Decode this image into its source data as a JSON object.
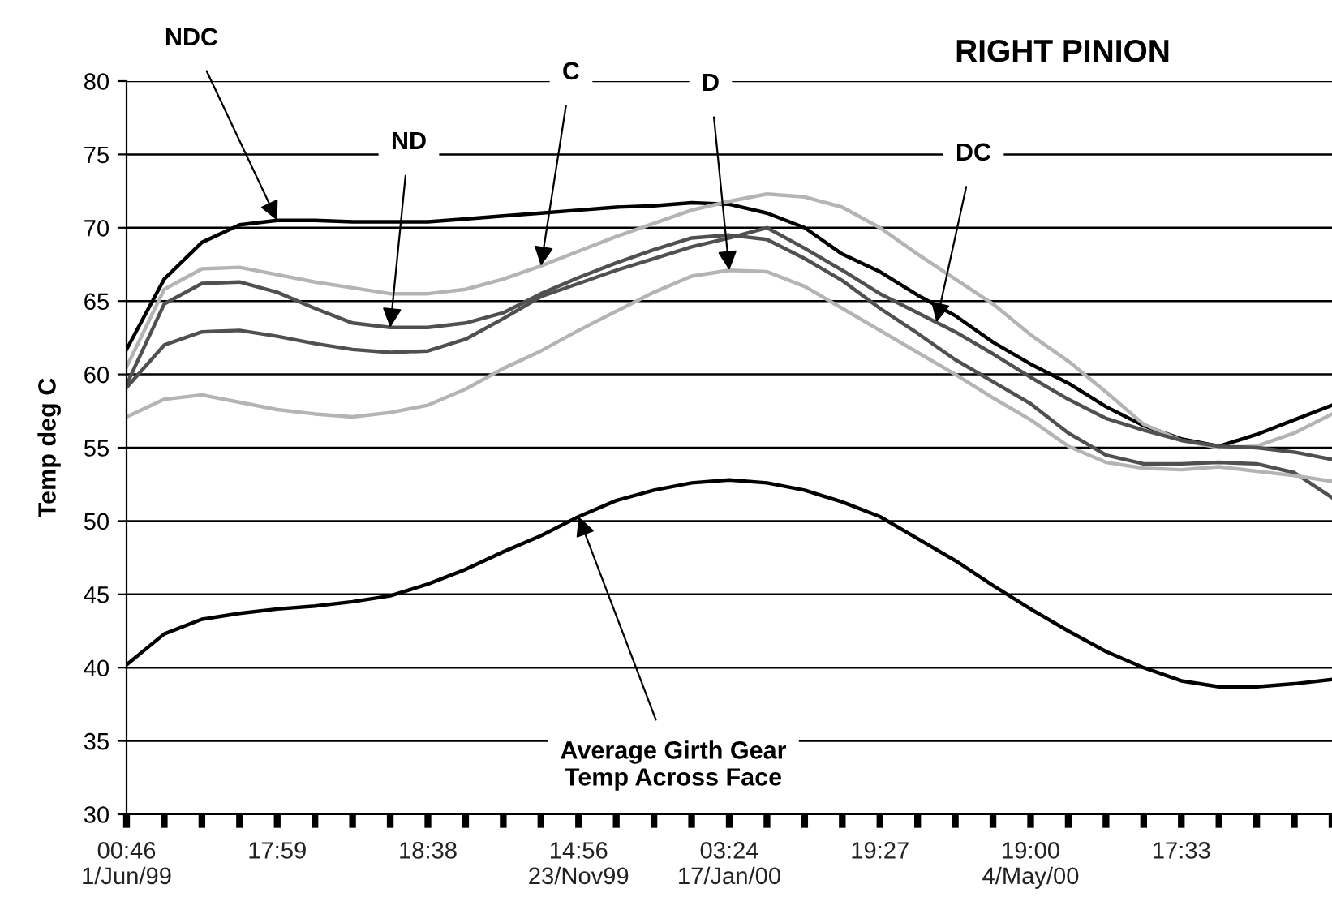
{
  "chart_data": {
    "type": "line",
    "title": "RIGHT PINION",
    "ylabel": "Temp deg C",
    "categories": [
      "00:46\n1/Jun/99",
      null,
      null,
      null,
      "17:59",
      null,
      null,
      null,
      "18:38",
      null,
      null,
      null,
      "14:56\n23/Nov99",
      null,
      null,
      null,
      "03:24\n17/Jan/00",
      null,
      null,
      null,
      "19:27",
      null,
      null,
      null,
      "19:00\n4/May/00",
      null,
      null,
      null,
      "17:33",
      null,
      null,
      null,
      null
    ],
    "series": [
      {
        "name": "NDC",
        "color": "#000000",
        "values": [
          61.7,
          66.5,
          69.0,
          70.2,
          70.5,
          70.5,
          70.4,
          70.4,
          70.4,
          70.6,
          70.8,
          71.0,
          71.2,
          71.4,
          71.5,
          71.7,
          71.6,
          71.0,
          70.0,
          68.2,
          67.0,
          65.4,
          64.0,
          62.2,
          60.7,
          59.4,
          57.8,
          56.5,
          55.6,
          55.1,
          55.9,
          56.9,
          57.9
        ]
      },
      {
        "name": "C",
        "color": "#b4b4b4",
        "values": [
          60.5,
          65.8,
          67.2,
          67.3,
          66.8,
          66.3,
          65.9,
          65.5,
          65.5,
          65.8,
          66.5,
          67.4,
          68.4,
          69.4,
          70.3,
          71.2,
          71.8,
          72.3,
          72.1,
          71.4,
          70.0,
          68.2,
          66.5,
          64.8,
          62.7,
          60.9,
          58.8,
          56.6,
          55.5,
          55.0,
          55.1,
          56.0,
          57.3
        ]
      },
      {
        "name": "ND",
        "color": "#505050",
        "values": [
          59.3,
          64.8,
          66.2,
          66.3,
          65.6,
          64.5,
          63.5,
          63.2,
          63.2,
          63.5,
          64.2,
          65.5,
          66.6,
          67.6,
          68.5,
          69.3,
          69.5,
          69.2,
          67.9,
          66.4,
          64.5,
          62.8,
          61.0,
          59.5,
          58.0,
          56.0,
          54.5,
          53.9,
          53.9,
          54.0,
          53.9,
          53.3,
          51.6
        ]
      },
      {
        "name": "DC",
        "color": "#505050",
        "values": [
          59.1,
          62.0,
          62.9,
          63.0,
          62.6,
          62.1,
          61.7,
          61.5,
          61.6,
          62.4,
          63.8,
          65.3,
          66.2,
          67.1,
          67.9,
          68.7,
          69.3,
          70.0,
          68.6,
          67.1,
          65.5,
          64.2,
          62.9,
          61.4,
          59.8,
          58.3,
          57.0,
          56.2,
          55.5,
          55.1,
          55.0,
          54.7,
          54.2
        ]
      },
      {
        "name": "D",
        "color": "#b4b4b4",
        "values": [
          57.1,
          58.3,
          58.6,
          58.1,
          57.6,
          57.3,
          57.1,
          57.4,
          57.9,
          59.0,
          60.4,
          61.6,
          63.0,
          64.3,
          65.6,
          66.7,
          67.1,
          67.0,
          66.0,
          64.5,
          63.0,
          61.5,
          60.0,
          58.4,
          56.9,
          55.1,
          54.0,
          53.6,
          53.5,
          53.7,
          53.4,
          53.1,
          52.7
        ]
      },
      {
        "name": "Average Girth Gear\nTemp Across Face",
        "color": "#000000",
        "values": [
          40.2,
          42.3,
          43.3,
          43.7,
          44.0,
          44.2,
          44.5,
          44.9,
          45.7,
          46.7,
          47.9,
          49.0,
          50.3,
          51.4,
          52.1,
          52.6,
          52.8,
          52.6,
          52.1,
          51.3,
          50.3,
          48.8,
          47.3,
          45.6,
          44.0,
          42.5,
          41.1,
          40.0,
          39.1,
          38.7,
          38.7,
          38.9,
          39.2
        ]
      }
    ],
    "ylim": [
      30,
      80
    ],
    "yticks": [
      30,
      35,
      40,
      45,
      50,
      55,
      60,
      65,
      70,
      75,
      80
    ],
    "grid": "y",
    "marker": "none",
    "line_style": "solid",
    "legend": false
  }
}
